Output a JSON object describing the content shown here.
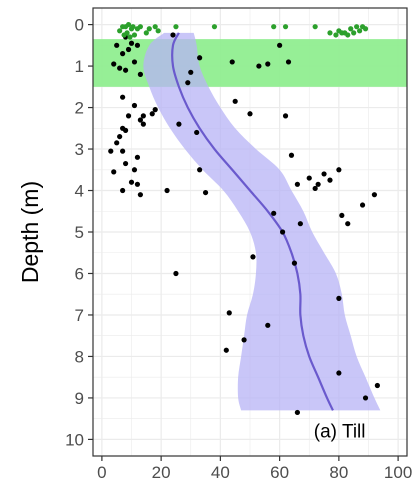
{
  "chart_data": {
    "type": "scatter",
    "title": "",
    "xlabel": "",
    "ylabel": "Depth (m)",
    "panel_label": "(a) Till",
    "xlim": [
      -3,
      103
    ],
    "ylim": [
      10.4,
      -0.4
    ],
    "y_reversed": true,
    "grid": true,
    "x_ticks": [
      0,
      20,
      40,
      60,
      80,
      100
    ],
    "x_tick_labels": [
      "0",
      "20",
      "40",
      "60",
      "80",
      "100"
    ],
    "y_ticks": [
      0,
      1,
      2,
      3,
      4,
      5,
      6,
      7,
      8,
      9,
      10
    ],
    "y_tick_labels": [
      "0",
      "1",
      "2",
      "3",
      "4",
      "5",
      "6",
      "7",
      "8",
      "9",
      "10"
    ],
    "shaded_band": {
      "y_from": 0.35,
      "y_to": 1.5,
      "color": "#90ee90"
    },
    "trend": {
      "color": "#6a5acd",
      "ribbon_color": "#b7b3f5",
      "points": [
        {
          "y": 0.2,
          "x": 26,
          "lo": 21,
          "hi": 31
        },
        {
          "y": 0.5,
          "x": 24,
          "lo": 16,
          "hi": 32
        },
        {
          "y": 1.0,
          "x": 24,
          "lo": 14,
          "hi": 33
        },
        {
          "y": 1.5,
          "x": 26,
          "lo": 16,
          "hi": 36
        },
        {
          "y": 2.0,
          "x": 29,
          "lo": 19,
          "hi": 40
        },
        {
          "y": 2.5,
          "x": 33,
          "lo": 23,
          "hi": 45
        },
        {
          "y": 3.0,
          "x": 38,
          "lo": 28,
          "hi": 52
        },
        {
          "y": 3.5,
          "x": 44,
          "lo": 34,
          "hi": 60
        },
        {
          "y": 4.0,
          "x": 50,
          "lo": 41,
          "hi": 64
        },
        {
          "y": 4.5,
          "x": 56,
          "lo": 46,
          "hi": 68
        },
        {
          "y": 5.0,
          "x": 61,
          "lo": 50,
          "hi": 71
        },
        {
          "y": 5.5,
          "x": 64,
          "lo": 52,
          "hi": 75
        },
        {
          "y": 6.0,
          "x": 66,
          "lo": 52,
          "hi": 79
        },
        {
          "y": 6.5,
          "x": 67,
          "lo": 51,
          "hi": 81
        },
        {
          "y": 7.0,
          "x": 67,
          "lo": 49,
          "hi": 82
        },
        {
          "y": 7.5,
          "x": 68,
          "lo": 48,
          "hi": 84
        },
        {
          "y": 8.0,
          "x": 70,
          "lo": 47,
          "hi": 86
        },
        {
          "y": 8.5,
          "x": 73,
          "lo": 46,
          "hi": 89
        },
        {
          "y": 9.0,
          "x": 76,
          "lo": 46,
          "hi": 92
        },
        {
          "y": 9.3,
          "x": 78,
          "lo": 47,
          "hi": 94
        }
      ]
    },
    "green_points": {
      "color": "#2ca02c",
      "points": [
        {
          "x": 6,
          "y": 0.15
        },
        {
          "x": 7,
          "y": 0.05
        },
        {
          "x": 7.5,
          "y": 0.25
        },
        {
          "x": 8,
          "y": 0.05
        },
        {
          "x": 8.5,
          "y": 0.2
        },
        {
          "x": 9,
          "y": 0.0
        },
        {
          "x": 9.5,
          "y": 0.3
        },
        {
          "x": 10,
          "y": 0.1
        },
        {
          "x": 10.5,
          "y": 0.05
        },
        {
          "x": 11,
          "y": 0.25
        },
        {
          "x": 12,
          "y": 0.1
        },
        {
          "x": 13,
          "y": 0.05
        },
        {
          "x": 15,
          "y": 0.2
        },
        {
          "x": 16,
          "y": 0.1
        },
        {
          "x": 18,
          "y": 0.05
        },
        {
          "x": 19,
          "y": 0.15
        },
        {
          "x": 25,
          "y": 0.05
        },
        {
          "x": 38,
          "y": 0.05
        },
        {
          "x": 58,
          "y": 0.05
        },
        {
          "x": 62,
          "y": 0.05
        },
        {
          "x": 72,
          "y": 0.05
        },
        {
          "x": 77,
          "y": 0.2
        },
        {
          "x": 79,
          "y": 0.25
        },
        {
          "x": 80,
          "y": 0.15
        },
        {
          "x": 81,
          "y": 0.2
        },
        {
          "x": 82,
          "y": 0.2
        },
        {
          "x": 83,
          "y": 0.25
        },
        {
          "x": 84,
          "y": 0.1
        },
        {
          "x": 85,
          "y": 0.2
        },
        {
          "x": 86,
          "y": 0.05
        },
        {
          "x": 87,
          "y": 0.15
        },
        {
          "x": 88,
          "y": 0.05
        },
        {
          "x": 89,
          "y": 0.1
        }
      ]
    },
    "black_points": {
      "color": "#000000",
      "points": [
        {
          "x": 8,
          "y": 0.3
        },
        {
          "x": 10,
          "y": 0.45
        },
        {
          "x": 12,
          "y": 0.5
        },
        {
          "x": 9,
          "y": 0.6
        },
        {
          "x": 5,
          "y": 0.5
        },
        {
          "x": 7,
          "y": 0.7
        },
        {
          "x": 4,
          "y": 0.95
        },
        {
          "x": 6,
          "y": 1.05
        },
        {
          "x": 8,
          "y": 1.1
        },
        {
          "x": 11,
          "y": 0.9
        },
        {
          "x": 13,
          "y": 1.2
        },
        {
          "x": 24,
          "y": 0.25
        },
        {
          "x": 33,
          "y": 0.8
        },
        {
          "x": 30,
          "y": 1.15
        },
        {
          "x": 29,
          "y": 1.4
        },
        {
          "x": 44,
          "y": 0.9
        },
        {
          "x": 53,
          "y": 1.0
        },
        {
          "x": 56,
          "y": 0.95
        },
        {
          "x": 45,
          "y": 1.85
        },
        {
          "x": 50,
          "y": 2.15
        },
        {
          "x": 60,
          "y": 0.5
        },
        {
          "x": 63,
          "y": 0.9
        },
        {
          "x": 7,
          "y": 1.75
        },
        {
          "x": 11,
          "y": 1.95
        },
        {
          "x": 14,
          "y": 2.2
        },
        {
          "x": 17,
          "y": 2.15
        },
        {
          "x": 18,
          "y": 2.05
        },
        {
          "x": 9,
          "y": 2.2
        },
        {
          "x": 7,
          "y": 2.5
        },
        {
          "x": 8,
          "y": 2.55
        },
        {
          "x": 6,
          "y": 2.7
        },
        {
          "x": 5,
          "y": 2.85
        },
        {
          "x": 7,
          "y": 3.05
        },
        {
          "x": 3,
          "y": 3.05
        },
        {
          "x": 13,
          "y": 2.3
        },
        {
          "x": 14,
          "y": 2.4
        },
        {
          "x": 26,
          "y": 2.4
        },
        {
          "x": 32,
          "y": 2.6
        },
        {
          "x": 4,
          "y": 3.55
        },
        {
          "x": 8,
          "y": 3.35
        },
        {
          "x": 11,
          "y": 3.5
        },
        {
          "x": 12,
          "y": 3.2
        },
        {
          "x": 10,
          "y": 3.8
        },
        {
          "x": 12,
          "y": 3.85
        },
        {
          "x": 7,
          "y": 4.0
        },
        {
          "x": 13,
          "y": 4.1
        },
        {
          "x": 22,
          "y": 4.0
        },
        {
          "x": 33,
          "y": 3.5
        },
        {
          "x": 35,
          "y": 4.05
        },
        {
          "x": 62,
          "y": 2.2
        },
        {
          "x": 64,
          "y": 3.15
        },
        {
          "x": 66,
          "y": 3.85
        },
        {
          "x": 70,
          "y": 3.7
        },
        {
          "x": 72,
          "y": 3.95
        },
        {
          "x": 73,
          "y": 3.85
        },
        {
          "x": 75,
          "y": 3.6
        },
        {
          "x": 77,
          "y": 3.75
        },
        {
          "x": 80,
          "y": 3.5
        },
        {
          "x": 58,
          "y": 4.55
        },
        {
          "x": 67,
          "y": 4.8
        },
        {
          "x": 81,
          "y": 4.6
        },
        {
          "x": 83,
          "y": 4.8
        },
        {
          "x": 88,
          "y": 4.35
        },
        {
          "x": 92,
          "y": 4.1
        },
        {
          "x": 61,
          "y": 5.0
        },
        {
          "x": 51,
          "y": 5.6
        },
        {
          "x": 65,
          "y": 5.75
        },
        {
          "x": 25,
          "y": 6.0
        },
        {
          "x": 80,
          "y": 6.6
        },
        {
          "x": 43,
          "y": 6.95
        },
        {
          "x": 56,
          "y": 7.25
        },
        {
          "x": 48,
          "y": 7.6
        },
        {
          "x": 42,
          "y": 7.85
        },
        {
          "x": 80,
          "y": 8.4
        },
        {
          "x": 93,
          "y": 8.7
        },
        {
          "x": 89,
          "y": 9.0
        },
        {
          "x": 66,
          "y": 9.35
        }
      ]
    }
  }
}
